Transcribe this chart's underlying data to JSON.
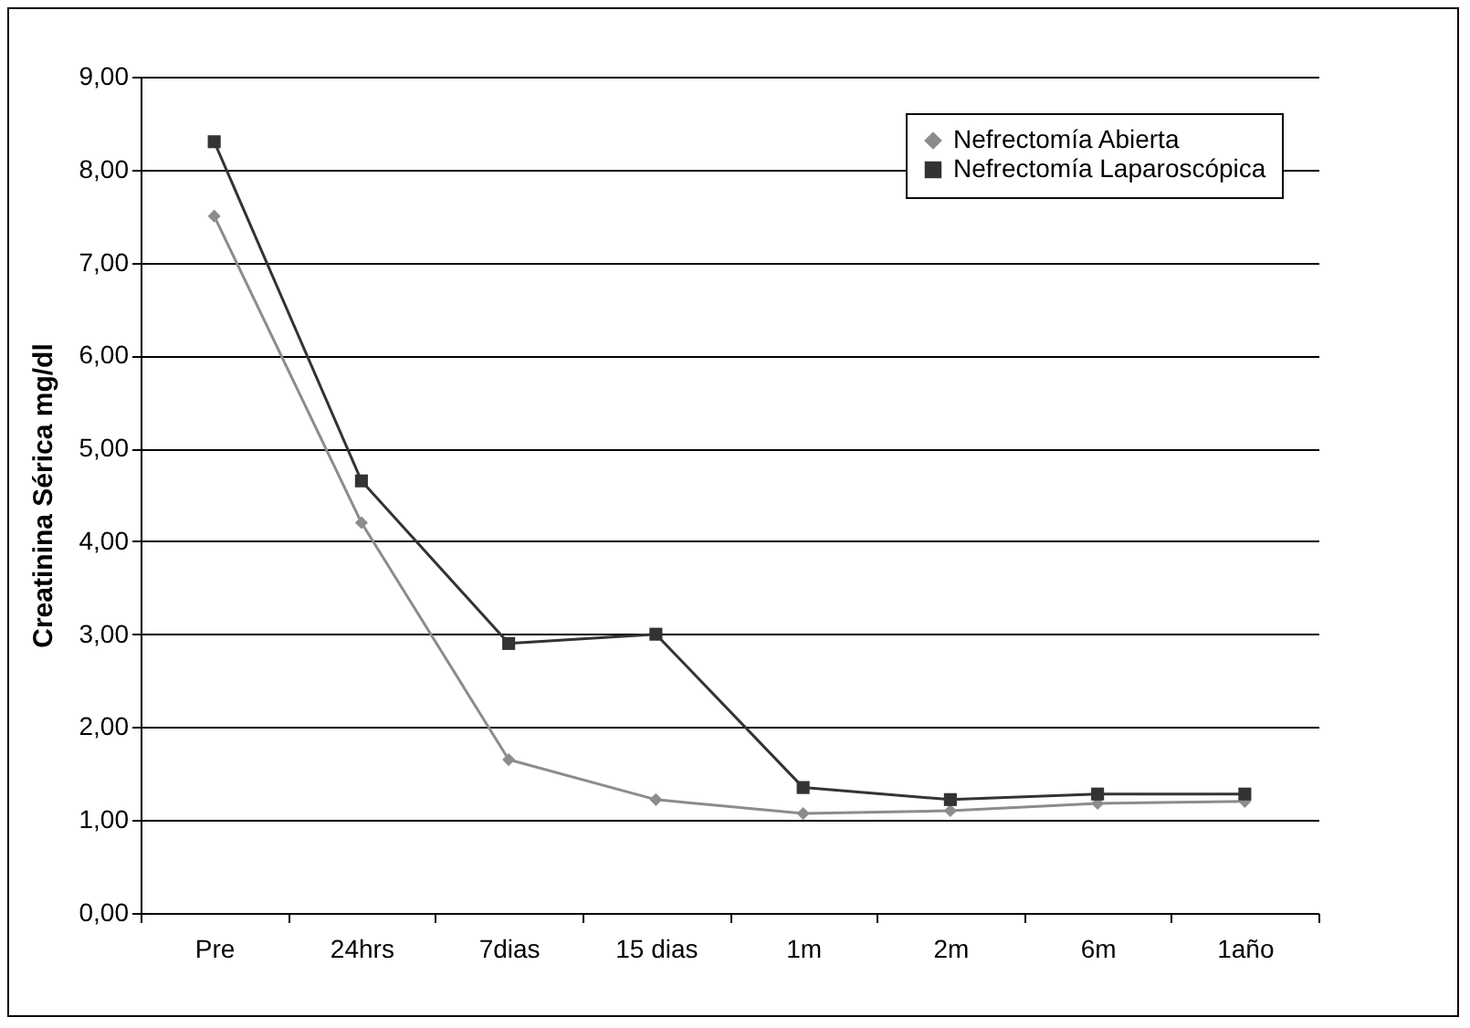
{
  "chart_data": {
    "type": "line",
    "ylabel": "Creatinina Sérica mg/dl",
    "categories": [
      "Pre",
      "24hrs",
      "7dias",
      "15 dias",
      "1m",
      "2m",
      "6m",
      "1año"
    ],
    "series": [
      {
        "name": "Nefrectomía Abierta",
        "color": "#8c8c8c",
        "marker": "diamond",
        "values": [
          7.5,
          4.2,
          1.65,
          1.22,
          1.07,
          1.1,
          1.18,
          1.2
        ]
      },
      {
        "name": "Nefrectomía Laparoscópica",
        "color": "#333333",
        "marker": "square",
        "values": [
          8.3,
          4.65,
          2.9,
          3.0,
          1.35,
          1.22,
          1.28,
          1.28
        ]
      }
    ],
    "ylim": [
      0,
      9
    ],
    "yticks": [
      {
        "value": 0,
        "label": "0,00"
      },
      {
        "value": 1,
        "label": "1,00"
      },
      {
        "value": 2,
        "label": "2,00"
      },
      {
        "value": 3,
        "label": "3,00"
      },
      {
        "value": 4,
        "label": "4,00"
      },
      {
        "value": 5,
        "label": "5,00"
      },
      {
        "value": 6,
        "label": "6,00"
      },
      {
        "value": 7,
        "label": "7,00"
      },
      {
        "value": 8,
        "label": "8,00"
      },
      {
        "value": 9,
        "label": "9,00"
      }
    ],
    "grid": "y",
    "legend": "top right",
    "line_style": "solid"
  }
}
